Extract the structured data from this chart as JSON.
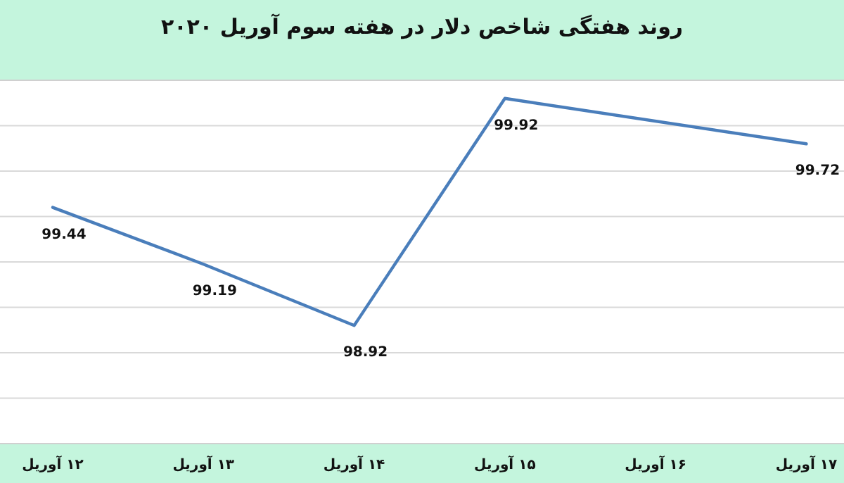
{
  "chart_data": {
    "type": "line",
    "title": "روند هفتگی شاخص دلار در هفته سوم آوریل ۲۰۲۰",
    "categories": [
      "۱۲ آوریل",
      "۱۳ آوریل",
      "۱۴ آوریل",
      "۱۵ آوریل",
      "۱۶ آوریل",
      "۱۷ آوریل"
    ],
    "values": [
      99.44,
      99.19,
      98.92,
      99.92,
      null,
      99.72
    ],
    "color": "#4a7ebb",
    "ylim": [
      98.4,
      100.0
    ],
    "yticks": [
      {
        "value": 98.6,
        "label": null
      },
      {
        "value": 98.8,
        "label": null
      },
      {
        "value": 99.0,
        "label": null
      },
      {
        "value": 99.2,
        "label": null
      },
      {
        "value": 99.4,
        "label": null
      },
      {
        "value": 99.6,
        "label": null
      },
      {
        "value": 99.8,
        "label": null
      }
    ],
    "grid": "y",
    "tick_labels": "x",
    "data_labels": true
  }
}
